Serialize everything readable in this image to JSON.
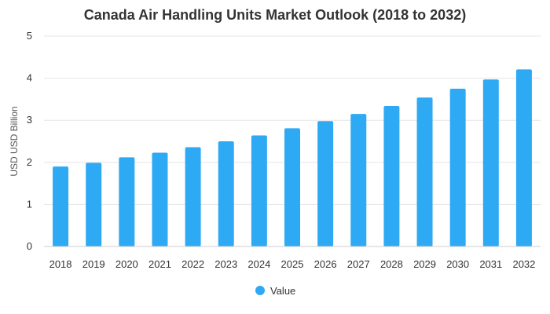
{
  "chart_data": {
    "type": "bar",
    "title": "Canada Air Handling Units Market Outlook (2018 to 2032)",
    "xlabel": "",
    "ylabel": "USD USD Billion",
    "ylim": [
      0,
      5
    ],
    "yticks": [
      "0",
      "1",
      "2",
      "3",
      "4",
      "5"
    ],
    "categories": [
      "2018",
      "2019",
      "2020",
      "2021",
      "2022",
      "2023",
      "2024",
      "2025",
      "2026",
      "2027",
      "2028",
      "2029",
      "2030",
      "2031",
      "2032"
    ],
    "series": [
      {
        "name": "Value",
        "color": "#2eaaf5",
        "values": [
          1.9,
          1.99,
          2.12,
          2.23,
          2.36,
          2.5,
          2.64,
          2.81,
          2.98,
          3.15,
          3.34,
          3.54,
          3.75,
          3.97,
          4.21
        ]
      }
    ],
    "grid": true,
    "legend": "bottom"
  }
}
